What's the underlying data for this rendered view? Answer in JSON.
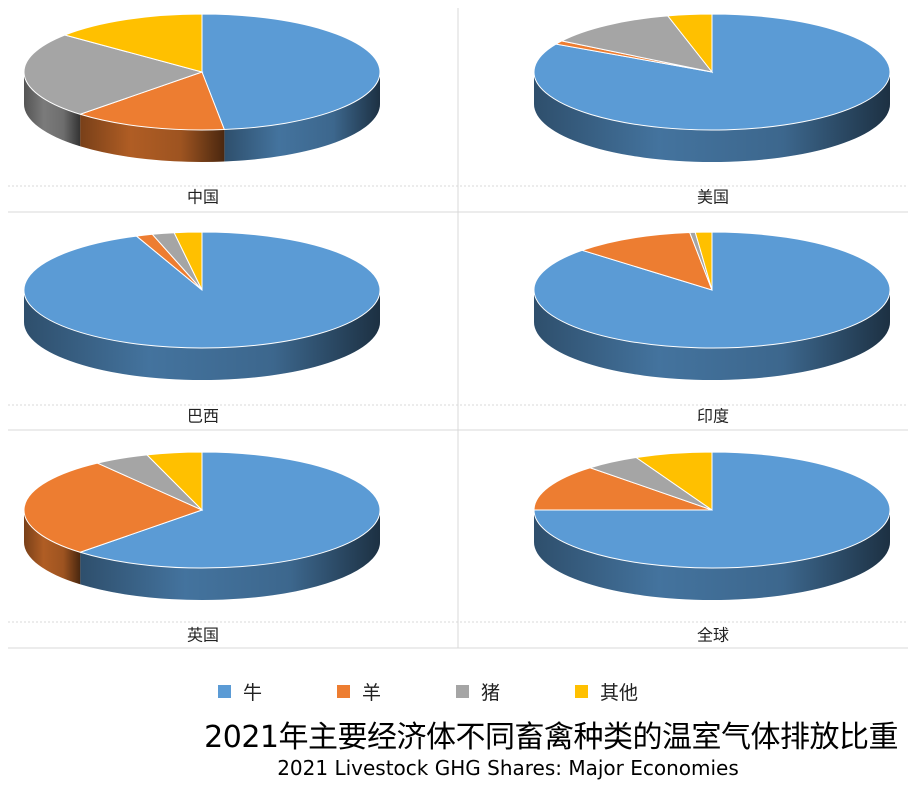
{
  "colors": {
    "牛": "#5b9bd5",
    "羊": "#ed7d31",
    "猪": "#a5a5a5",
    "其他": "#ffc000"
  },
  "legend": [
    "牛",
    "羊",
    "猪",
    "其他"
  ],
  "title_cn": "2021年主要经济体不同畜禽种类的温室气体排放比重",
  "title_en": "2021 Livestock GHG Shares: Major Economies",
  "chart_data": [
    {
      "type": "pie",
      "label": "中国",
      "categories": [
        "牛",
        "羊",
        "猪",
        "其他"
      ],
      "values": [
        48,
        14,
        24,
        14
      ]
    },
    {
      "type": "pie",
      "label": "美国",
      "categories": [
        "牛",
        "羊",
        "猪",
        "其他"
      ],
      "values": [
        83,
        1,
        12,
        4
      ]
    },
    {
      "type": "pie",
      "label": "巴西",
      "categories": [
        "牛",
        "羊",
        "猪",
        "其他"
      ],
      "values": [
        94,
        1.5,
        2,
        2.5
      ]
    },
    {
      "type": "pie",
      "label": "印度",
      "categories": [
        "牛",
        "羊",
        "猪",
        "其他"
      ],
      "values": [
        87,
        11,
        0.5,
        1.5
      ]
    },
    {
      "type": "pie",
      "label": "英国",
      "categories": [
        "牛",
        "羊",
        "猪",
        "其他"
      ],
      "values": [
        62,
        28,
        5,
        5
      ]
    },
    {
      "type": "pie",
      "label": "全球",
      "categories": [
        "牛",
        "羊",
        "猪",
        "其他"
      ],
      "values": [
        75,
        13,
        5,
        7
      ]
    }
  ]
}
